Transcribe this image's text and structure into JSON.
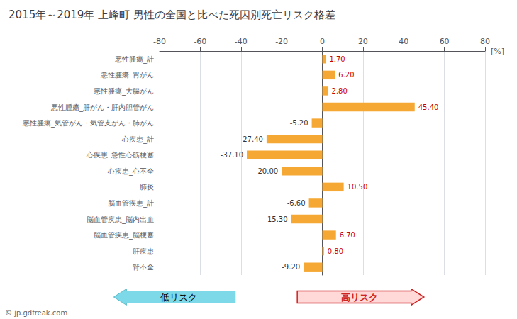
{
  "chart_data": {
    "type": "bar",
    "orientation": "horizontal",
    "title": "2015年～2019年 上峰町 男性の全国と比べた死因別死亡リスク格差",
    "xlabel": "[%]",
    "categories": [
      "悪性腫瘍_計",
      "悪性腫瘍_胃がん",
      "悪性腫瘍_大腸がん",
      "悪性腫瘍_肝がん・肝内胆管がん",
      "悪性腫瘍_気管がん・気管支がん・肺がん",
      "心疾患_計",
      "心疾患_急性心筋梗塞",
      "心疾患_心不全",
      "肺炎",
      "脳血管疾患_計",
      "脳血管疾患_脳内出血",
      "脳血管疾患_脳梗塞",
      "肝疾患",
      "腎不全"
    ],
    "values": [
      1.7,
      6.2,
      2.8,
      45.4,
      -5.2,
      -27.4,
      -37.1,
      -20.0,
      10.5,
      -6.6,
      -15.3,
      6.7,
      0.8,
      -9.2
    ],
    "value_labels": [
      "1.70",
      "6.20",
      "2.80",
      "45.40",
      "-5.20",
      "-27.40",
      "-37.10",
      "-20.00",
      "10.50",
      "-6.60",
      "-15.30",
      "6.70",
      "0.80",
      "-9.20"
    ],
    "color": "#f5a833",
    "xlim": [
      -80,
      80
    ],
    "xticks": [
      -80,
      -60,
      -40,
      -20,
      0,
      20,
      40,
      60,
      80
    ],
    "grid": true,
    "data_labels": true,
    "annotations": [
      "低リスク",
      "高リスク",
      "© jp.gdfreak.com"
    ]
  }
}
